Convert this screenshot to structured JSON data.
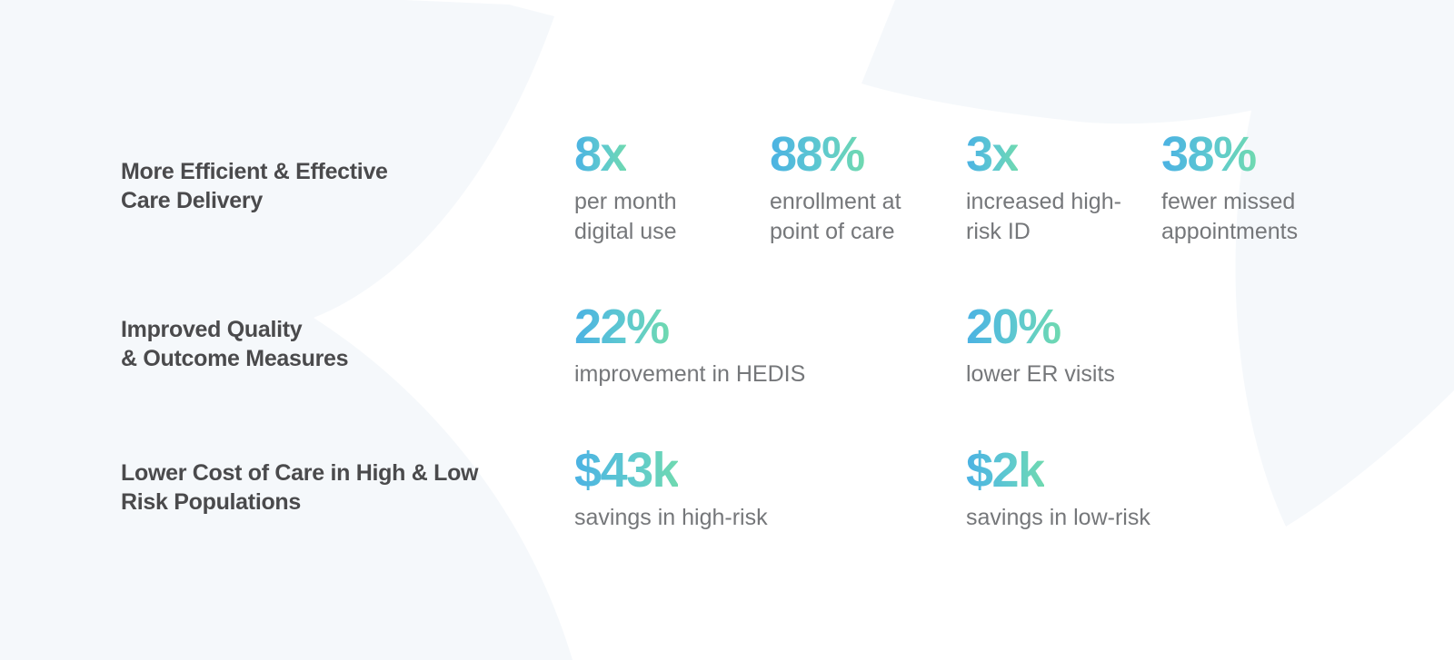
{
  "colors": {
    "background": "#ffffff",
    "shape": "#f5f8fb",
    "heading": "#4a4a4c",
    "label": "#75777a",
    "gradient_start": "#4bb2e3",
    "gradient_end": "#6fd9b0"
  },
  "rows": [
    {
      "title": "More Efficient & Effective\nCare Delivery",
      "stats": [
        {
          "value": "8x",
          "label": "per month\ndigital use"
        },
        {
          "value": "88%",
          "label": "enrollment at\npoint of care"
        },
        {
          "value": "3x",
          "label": "increased high-\nrisk ID"
        },
        {
          "value": "38%",
          "label": "fewer missed\nappointments"
        }
      ]
    },
    {
      "title": "Improved Quality\n& Outcome Measures",
      "stats": [
        {
          "value": "22%",
          "label": "improvement in HEDIS"
        },
        {
          "value": "20%",
          "label": "lower ER visits"
        }
      ]
    },
    {
      "title": "Lower Cost of Care in High & Low\nRisk Populations",
      "stats": [
        {
          "value": "$43k",
          "label": "savings in high-risk"
        },
        {
          "value": "$2k",
          "label": "savings in low-risk"
        }
      ]
    }
  ]
}
